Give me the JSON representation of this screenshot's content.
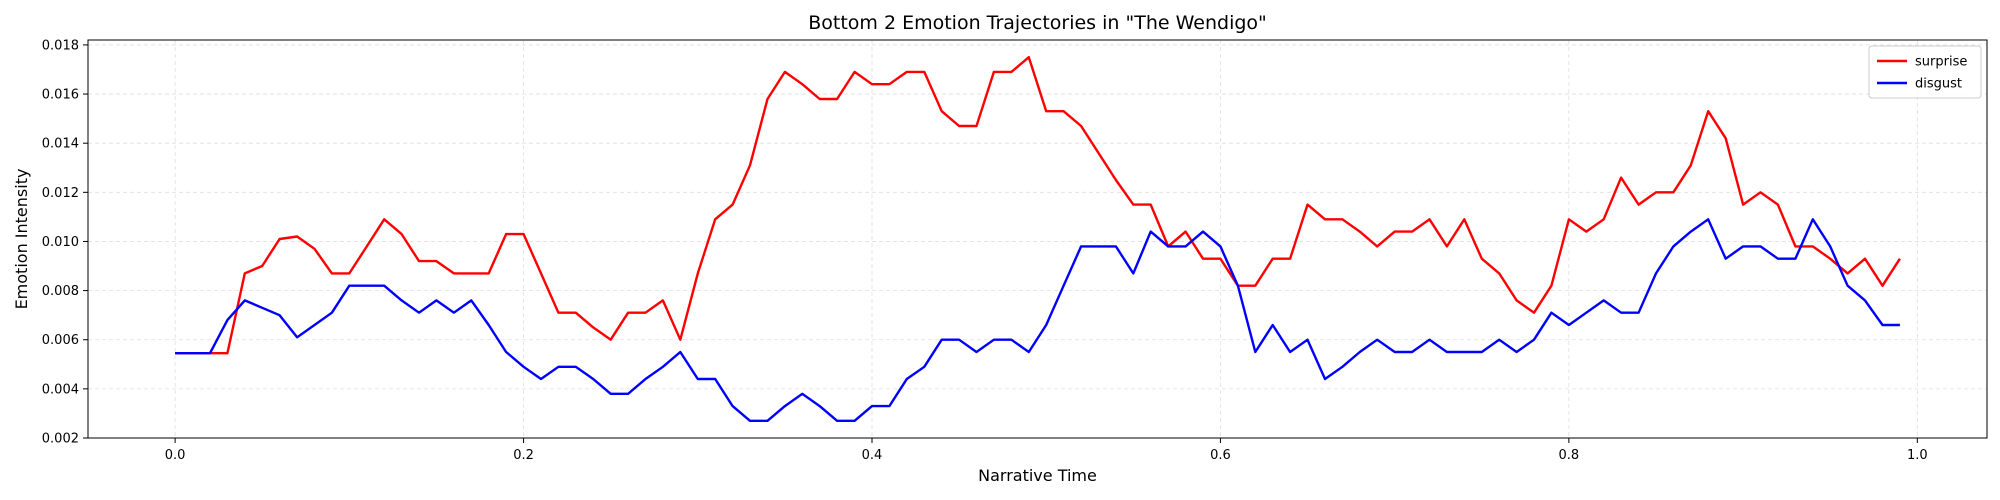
{
  "chart_data": {
    "type": "line",
    "title": "Bottom 2 Emotion Trajectories in \"The Wendigo\"",
    "xlabel": "Narrative Time",
    "ylabel": "Emotion Intensity",
    "xlim": [
      -0.05,
      1.04
    ],
    "ylim": [
      0.002,
      0.0182
    ],
    "xticks": [
      0.0,
      0.2,
      0.4,
      0.6,
      0.8,
      1.0
    ],
    "xtick_labels": [
      "0.0",
      "0.2",
      "0.4",
      "0.6",
      "0.8",
      "1.0"
    ],
    "yticks": [
      0.002,
      0.004,
      0.006,
      0.008,
      0.01,
      0.012,
      0.014,
      0.016,
      0.018
    ],
    "ytick_labels": [
      "0.002",
      "0.004",
      "0.006",
      "0.008",
      "0.010",
      "0.012",
      "0.014",
      "0.016",
      "0.018"
    ],
    "grid": true,
    "legend_position": "top-right",
    "x": [
      0.0,
      0.01,
      0.02,
      0.03,
      0.04,
      0.05,
      0.06,
      0.07,
      0.08,
      0.09,
      0.1,
      0.11,
      0.12,
      0.13,
      0.14,
      0.15,
      0.16,
      0.17,
      0.18,
      0.19,
      0.2,
      0.21,
      0.22,
      0.23,
      0.24,
      0.25,
      0.26,
      0.27,
      0.28,
      0.29,
      0.3,
      0.31,
      0.32,
      0.33,
      0.34,
      0.35,
      0.36,
      0.37,
      0.38,
      0.39,
      0.4,
      0.41,
      0.42,
      0.43,
      0.44,
      0.45,
      0.46,
      0.47,
      0.48,
      0.49,
      0.5,
      0.51,
      0.52,
      0.53,
      0.54,
      0.55,
      0.56,
      0.57,
      0.58,
      0.59,
      0.6,
      0.61,
      0.62,
      0.63,
      0.64,
      0.65,
      0.66,
      0.67,
      0.68,
      0.69,
      0.7,
      0.71,
      0.72,
      0.73,
      0.74,
      0.75,
      0.76,
      0.77,
      0.78,
      0.79,
      0.8,
      0.81,
      0.82,
      0.83,
      0.84,
      0.85,
      0.86,
      0.87,
      0.88,
      0.89,
      0.9,
      0.91,
      0.92,
      0.93,
      0.94,
      0.95,
      0.96,
      0.97,
      0.98,
      0.99
    ],
    "series": [
      {
        "name": "surprise",
        "color": "#ff0000",
        "values": [
          0.00545,
          0.00545,
          0.00545,
          0.00545,
          0.0087,
          0.009,
          0.0101,
          0.0102,
          0.0097,
          0.0087,
          0.0087,
          0.0098,
          0.0109,
          0.0103,
          0.0092,
          0.0092,
          0.0087,
          0.0087,
          0.0087,
          0.0103,
          0.0103,
          0.0087,
          0.0071,
          0.0071,
          0.0065,
          0.006,
          0.0071,
          0.0071,
          0.0076,
          0.006,
          0.0087,
          0.0109,
          0.0115,
          0.0131,
          0.0158,
          0.0169,
          0.0164,
          0.0158,
          0.0158,
          0.0169,
          0.0164,
          0.0164,
          0.0169,
          0.0169,
          0.0153,
          0.0147,
          0.0147,
          0.0169,
          0.0169,
          0.0175,
          0.0153,
          0.0153,
          0.0147,
          0.0136,
          0.0125,
          0.0115,
          0.0115,
          0.0098,
          0.0104,
          0.0093,
          0.0093,
          0.0082,
          0.0082,
          0.0093,
          0.0093,
          0.0115,
          0.0109,
          0.0109,
          0.0104,
          0.0098,
          0.0104,
          0.0104,
          0.0109,
          0.0098,
          0.0109,
          0.0093,
          0.0087,
          0.0076,
          0.0071,
          0.0082,
          0.0109,
          0.0104,
          0.0109,
          0.0126,
          0.0115,
          0.012,
          0.012,
          0.0131,
          0.0153,
          0.0142,
          0.0115,
          0.012,
          0.0115,
          0.0098,
          0.0098,
          0.0093,
          0.0087,
          0.0093,
          0.0082,
          0.0093
        ]
      },
      {
        "name": "disgust",
        "color": "#0000ff",
        "values": [
          0.00545,
          0.00545,
          0.00545,
          0.0068,
          0.0076,
          0.0073,
          0.007,
          0.0061,
          0.0066,
          0.0071,
          0.0082,
          0.0082,
          0.0082,
          0.0076,
          0.0071,
          0.0076,
          0.0071,
          0.0076,
          0.0066,
          0.0055,
          0.0049,
          0.0044,
          0.0049,
          0.0049,
          0.0044,
          0.0038,
          0.0038,
          0.0044,
          0.0049,
          0.0055,
          0.0044,
          0.0044,
          0.0033,
          0.0027,
          0.0027,
          0.0033,
          0.0038,
          0.0033,
          0.0027,
          0.0027,
          0.0033,
          0.0033,
          0.0044,
          0.0049,
          0.006,
          0.006,
          0.0055,
          0.006,
          0.006,
          0.0055,
          0.0066,
          0.0082,
          0.0098,
          0.0098,
          0.0098,
          0.0087,
          0.0104,
          0.0098,
          0.0098,
          0.0104,
          0.0098,
          0.0082,
          0.0055,
          0.0066,
          0.0055,
          0.006,
          0.0044,
          0.0049,
          0.0055,
          0.006,
          0.0055,
          0.0055,
          0.006,
          0.0055,
          0.0055,
          0.0055,
          0.006,
          0.0055,
          0.006,
          0.0071,
          0.0066,
          0.0071,
          0.0076,
          0.0071,
          0.0071,
          0.0087,
          0.0098,
          0.0104,
          0.0109,
          0.0093,
          0.0098,
          0.0098,
          0.0093,
          0.0093,
          0.0109,
          0.0098,
          0.0082,
          0.0076,
          0.0066,
          0.0066
        ]
      }
    ]
  }
}
